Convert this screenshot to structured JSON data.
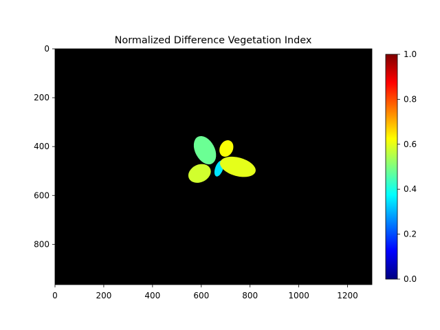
{
  "chart_data": {
    "type": "heatmap",
    "title": "Normalized Difference Vegetation Index",
    "xlabel": "",
    "ylabel": "",
    "xlim": [
      0,
      1300
    ],
    "ylim": [
      965,
      0
    ],
    "x_ticks": [
      0,
      200,
      400,
      600,
      800,
      1000,
      1200
    ],
    "y_ticks": [
      0,
      200,
      400,
      600,
      800
    ],
    "background_color": "#000000",
    "colormap": "jet",
    "colorbar": {
      "range": [
        0,
        1
      ],
      "ticks": [
        0.0,
        0.2,
        0.4,
        0.6,
        0.8,
        1.0
      ],
      "tick_labels": [
        "0.0",
        "0.2",
        "0.4",
        "0.6",
        "0.8",
        "1.0"
      ],
      "colors": [
        "#00007f",
        "#0000ff",
        "#007fff",
        "#00ffff",
        "#7fff7f",
        "#ffff00",
        "#ff7f00",
        "#ff0000",
        "#7f0000"
      ]
    },
    "regions": [
      {
        "center": [
          615,
          415
        ],
        "rx": 40,
        "ry": 62,
        "rotate": -28,
        "ndvi": 0.48
      },
      {
        "center": [
          703,
          408
        ],
        "rx": 27,
        "ry": 35,
        "rotate": 25,
        "ndvi": 0.62
      },
      {
        "center": [
          593,
          510
        ],
        "rx": 48,
        "ry": 36,
        "rotate": -25,
        "ndvi": 0.58
      },
      {
        "center": [
          673,
          490
        ],
        "rx": 16,
        "ry": 34,
        "rotate": 20,
        "ndvi": 0.35
      },
      {
        "center": [
          750,
          483
        ],
        "rx": 75,
        "ry": 38,
        "rotate": 15,
        "ndvi": 0.6
      }
    ],
    "grid": false,
    "legend": "none"
  }
}
